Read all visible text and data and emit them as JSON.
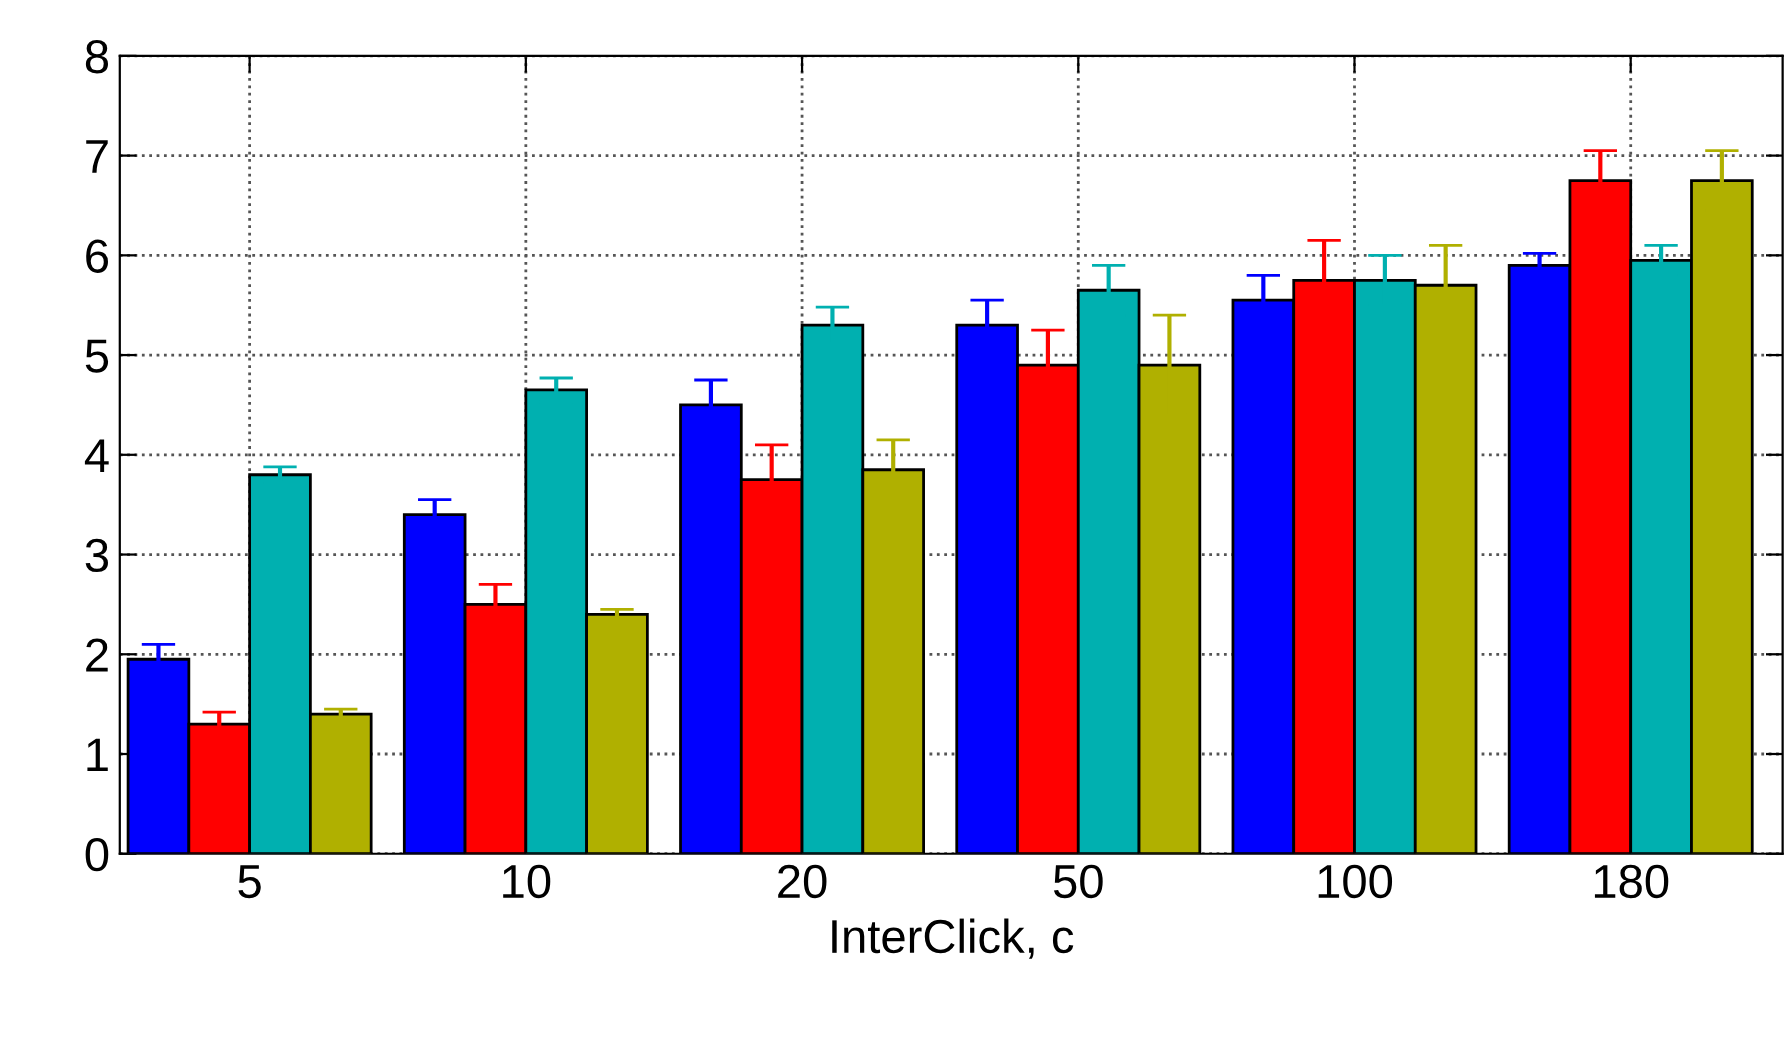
{
  "chart_data": {
    "type": "bar",
    "xlabel": "InterClick, c",
    "categories": [
      "5",
      "10",
      "20",
      "50",
      "100",
      "180"
    ],
    "series": [
      {
        "color": "#0000ff",
        "values": [
          1.95,
          3.4,
          4.5,
          5.3,
          5.55,
          5.9
        ],
        "errors": [
          0.15,
          0.15,
          0.25,
          0.25,
          0.25,
          0.12
        ]
      },
      {
        "color": "#ff0000",
        "values": [
          1.3,
          2.5,
          3.75,
          4.9,
          5.75,
          6.75
        ],
        "errors": [
          0.12,
          0.2,
          0.35,
          0.35,
          0.4,
          0.3
        ]
      },
      {
        "color": "#00b0b0",
        "values": [
          3.8,
          4.65,
          5.3,
          5.65,
          5.75,
          5.95
        ],
        "errors": [
          0.08,
          0.12,
          0.18,
          0.25,
          0.25,
          0.15
        ]
      },
      {
        "color": "#b0b000",
        "values": [
          1.4,
          2.4,
          3.85,
          4.9,
          5.7,
          6.75
        ],
        "errors": [
          0.05,
          0.05,
          0.3,
          0.5,
          0.4,
          0.3
        ]
      }
    ],
    "ylim": [
      0,
      8
    ],
    "yticks": [
      0,
      1,
      2,
      3,
      4,
      5,
      6,
      7,
      8
    ],
    "grid": true,
    "legend": false
  }
}
